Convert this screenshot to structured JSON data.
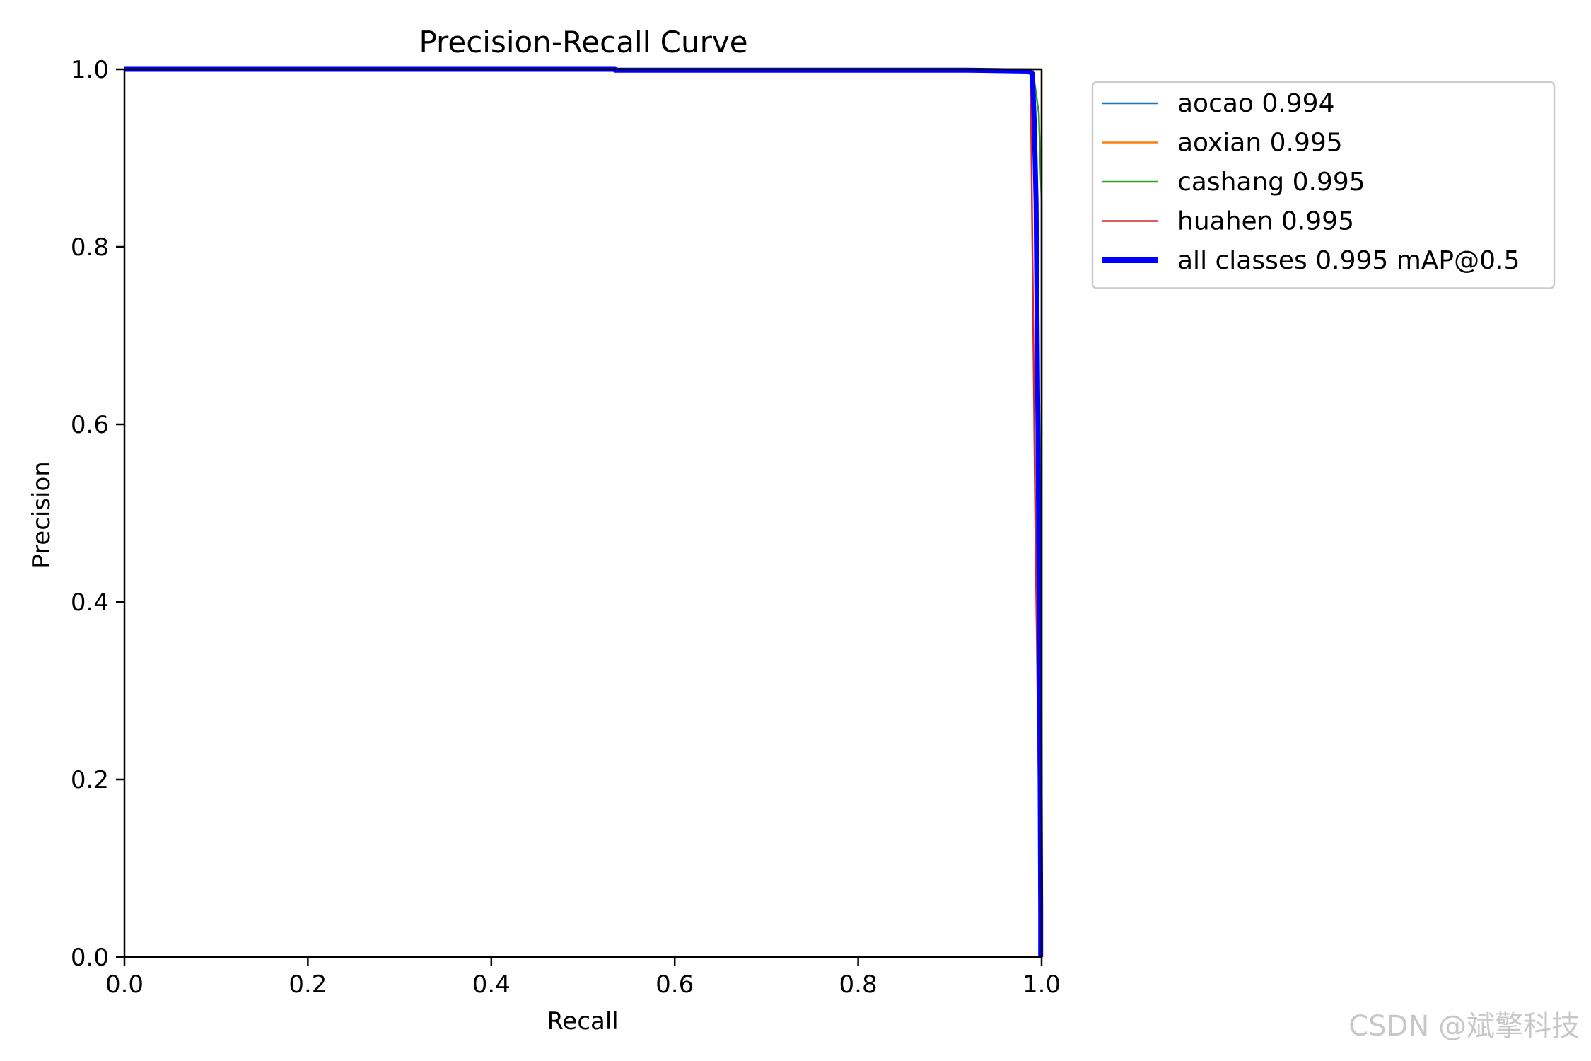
{
  "chart_data": {
    "type": "line",
    "title": "Precision-Recall Curve",
    "xlabel": "Recall",
    "ylabel": "Precision",
    "xlim": [
      0.0,
      1.0
    ],
    "ylim": [
      0.0,
      1.0
    ],
    "x_ticks": [
      "0.0",
      "0.2",
      "0.4",
      "0.6",
      "0.8",
      "1.0"
    ],
    "y_ticks": [
      "0.0",
      "0.2",
      "0.4",
      "0.6",
      "0.8",
      "1.0"
    ],
    "grid": false,
    "legend_position": "outside-upper-right",
    "series": [
      {
        "name": "aocao 0.994",
        "color": "#1f77b4",
        "width": "thin",
        "points": [
          [
            0.0,
            1.0
          ],
          [
            0.985,
            1.0
          ],
          [
            0.99,
            0.998
          ],
          [
            0.993,
            0.95
          ],
          [
            0.995,
            0.6
          ],
          [
            0.997,
            0.2
          ],
          [
            0.998,
            0.0
          ]
        ]
      },
      {
        "name": "aoxian 0.995",
        "color": "#ff7f0e",
        "width": "thin",
        "points": [
          [
            0.0,
            1.0
          ],
          [
            0.998,
            1.0
          ],
          [
            1.0,
            1.0
          ],
          [
            1.0,
            0.0
          ]
        ]
      },
      {
        "name": "cashang 0.995",
        "color": "#2ca02c",
        "width": "thin",
        "points": [
          [
            0.0,
            1.0
          ],
          [
            0.99,
            1.0
          ],
          [
            0.993,
            0.98
          ],
          [
            0.997,
            0.95
          ],
          [
            1.0,
            0.85
          ],
          [
            1.0,
            0.0
          ]
        ]
      },
      {
        "name": "huahen 0.995",
        "color": "#d62728",
        "width": "thin",
        "points": [
          [
            0.0,
            1.0
          ],
          [
            0.985,
            1.0
          ],
          [
            0.988,
            0.996
          ],
          [
            0.993,
            0.5
          ],
          [
            0.998,
            0.1
          ],
          [
            1.0,
            0.0
          ]
        ]
      },
      {
        "name": "all classes 0.995 mAP@0.5",
        "color": "#0000ff",
        "width": "thick",
        "points": [
          [
            0.0,
            1.0
          ],
          [
            0.535,
            1.0
          ],
          [
            0.535,
            0.999
          ],
          [
            0.92,
            0.999
          ],
          [
            0.985,
            0.998
          ],
          [
            0.99,
            0.995
          ],
          [
            0.992,
            0.94
          ],
          [
            0.994,
            0.85
          ],
          [
            0.996,
            0.6
          ],
          [
            0.998,
            0.3
          ],
          [
            0.999,
            0.05
          ],
          [
            0.999,
            0.0
          ]
        ]
      }
    ]
  },
  "watermark": "CSDN @斌擎科技"
}
